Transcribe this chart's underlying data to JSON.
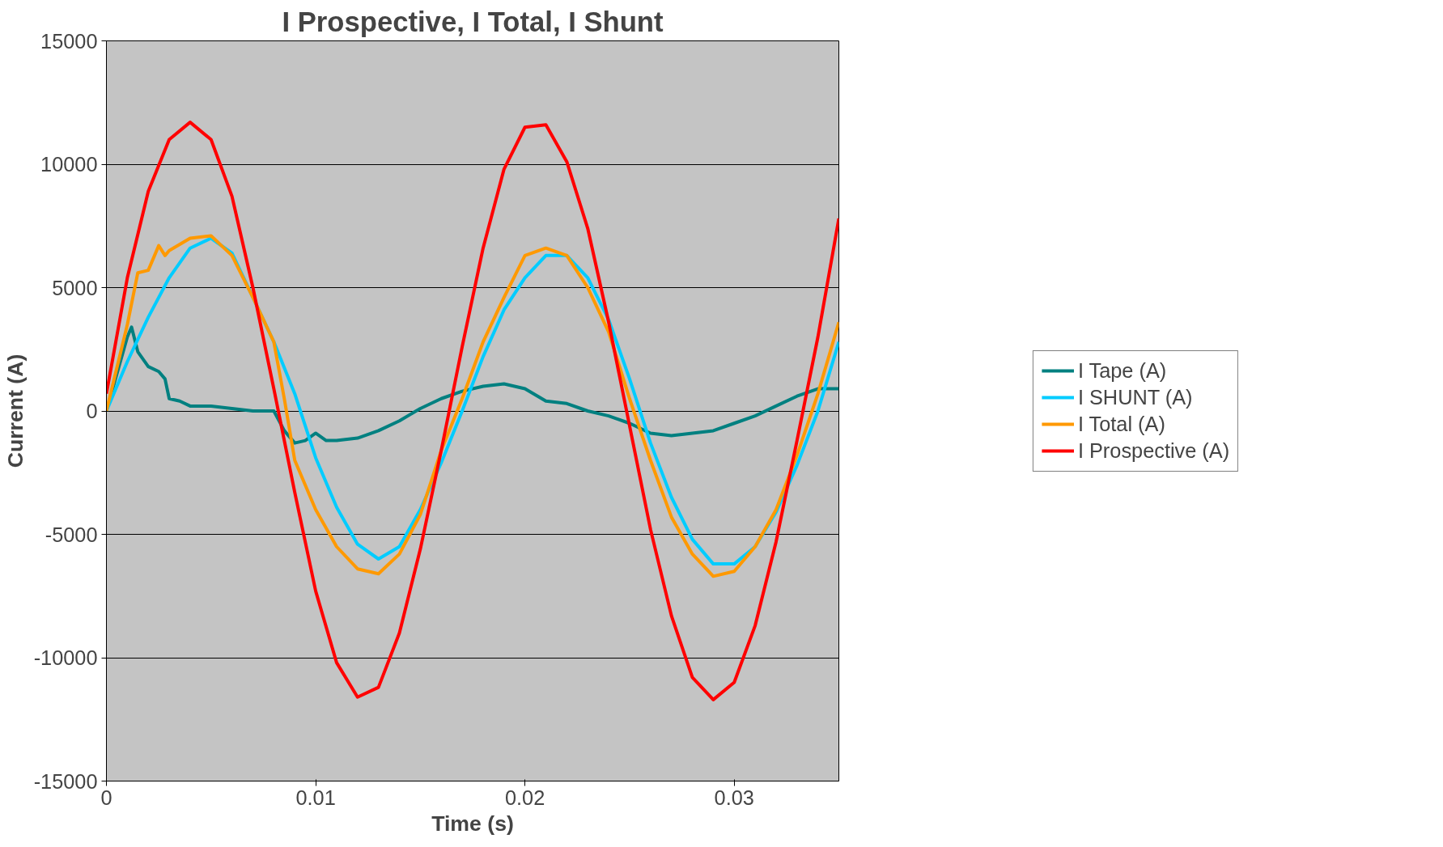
{
  "chart_data": {
    "type": "line",
    "title": "I Prospective, I Total, I Shunt",
    "xlabel": "Time (s)",
    "ylabel": "Current (A)",
    "xlim": [
      0,
      0.035
    ],
    "xticks": [
      0,
      0.01,
      0.02,
      0.03
    ],
    "ylim": [
      -15000,
      15000
    ],
    "yticks": [
      -15000,
      -10000,
      -5000,
      0,
      5000,
      10000,
      15000
    ],
    "grid": "y",
    "legend": "right",
    "marker": "none",
    "line_style": "solid",
    "series": [
      {
        "name": "I Tape (A)",
        "color": "#008080",
        "x": [
          0,
          0.0005,
          0.001,
          0.0012,
          0.0015,
          0.002,
          0.0025,
          0.0028,
          0.003,
          0.0035,
          0.004,
          0.005,
          0.006,
          0.007,
          0.008,
          0.0085,
          0.009,
          0.0095,
          0.01,
          0.0105,
          0.011,
          0.012,
          0.013,
          0.014,
          0.015,
          0.016,
          0.017,
          0.018,
          0.019,
          0.02,
          0.021,
          0.022,
          0.023,
          0.024,
          0.025,
          0.026,
          0.027,
          0.028,
          0.029,
          0.03,
          0.031,
          0.032,
          0.033,
          0.034,
          0.035
        ],
        "values": [
          0,
          1500,
          3000,
          3400,
          2400,
          1800,
          1600,
          1300,
          500,
          400,
          200,
          200,
          100,
          0,
          0,
          -800,
          -1300,
          -1200,
          -900,
          -1200,
          -1200,
          -1100,
          -800,
          -400,
          100,
          500,
          800,
          1000,
          1100,
          900,
          400,
          300,
          0,
          -200,
          -500,
          -900,
          -1000,
          -900,
          -800,
          -500,
          -200,
          200,
          600,
          900,
          900
        ]
      },
      {
        "name": "I SHUNT (A)",
        "color": "#00ccff",
        "x": [
          0,
          0.001,
          0.002,
          0.003,
          0.004,
          0.005,
          0.006,
          0.007,
          0.008,
          0.009,
          0.01,
          0.011,
          0.012,
          0.013,
          0.014,
          0.015,
          0.016,
          0.017,
          0.018,
          0.019,
          0.02,
          0.021,
          0.022,
          0.023,
          0.024,
          0.025,
          0.026,
          0.027,
          0.028,
          0.029,
          0.03,
          0.031,
          0.032,
          0.033,
          0.034,
          0.035
        ],
        "values": [
          0,
          2000,
          3800,
          5400,
          6600,
          7000,
          6400,
          4600,
          2800,
          700,
          -1900,
          -3900,
          -5400,
          -6000,
          -5500,
          -4000,
          -2100,
          0,
          2200,
          4100,
          5400,
          6300,
          6300,
          5400,
          3700,
          1300,
          -1300,
          -3500,
          -5200,
          -6200,
          -6200,
          -5500,
          -4100,
          -2200,
          0,
          2800
        ]
      },
      {
        "name": "I Total (A)",
        "color": "#ff9900",
        "x": [
          0,
          0.001,
          0.0015,
          0.002,
          0.0025,
          0.0028,
          0.003,
          0.004,
          0.005,
          0.006,
          0.007,
          0.008,
          0.0085,
          0.009,
          0.01,
          0.011,
          0.012,
          0.013,
          0.014,
          0.015,
          0.016,
          0.017,
          0.018,
          0.019,
          0.02,
          0.021,
          0.022,
          0.023,
          0.024,
          0.025,
          0.026,
          0.027,
          0.028,
          0.029,
          0.03,
          0.031,
          0.032,
          0.033,
          0.034,
          0.035
        ],
        "values": [
          0,
          3500,
          5600,
          5700,
          6700,
          6300,
          6500,
          7000,
          7100,
          6300,
          4600,
          2800,
          500,
          -2000,
          -4000,
          -5500,
          -6400,
          -6600,
          -5800,
          -4200,
          -1600,
          500,
          2800,
          4600,
          6300,
          6600,
          6300,
          5000,
          3200,
          500,
          -2000,
          -4300,
          -5800,
          -6700,
          -6500,
          -5500,
          -4000,
          -1800,
          700,
          3600
        ]
      },
      {
        "name": "I Prospective (A)",
        "color": "#ff0000",
        "x": [
          0,
          0.001,
          0.002,
          0.003,
          0.004,
          0.005,
          0.006,
          0.007,
          0.008,
          0.009,
          0.01,
          0.011,
          0.012,
          0.013,
          0.014,
          0.015,
          0.016,
          0.017,
          0.018,
          0.019,
          0.02,
          0.021,
          0.022,
          0.023,
          0.024,
          0.025,
          0.026,
          0.027,
          0.028,
          0.029,
          0.03,
          0.031,
          0.032,
          0.033,
          0.034,
          0.035
        ],
        "values": [
          700,
          5400,
          8900,
          11000,
          11700,
          11000,
          8700,
          5000,
          900,
          -3300,
          -7300,
          -10200,
          -11600,
          -11200,
          -9000,
          -5600,
          -1600,
          2600,
          6600,
          9800,
          11500,
          11600,
          10100,
          7400,
          3600,
          -600,
          -4800,
          -8300,
          -10800,
          -11700,
          -11000,
          -8700,
          -5300,
          -1200,
          3000,
          7800
        ]
      }
    ]
  }
}
